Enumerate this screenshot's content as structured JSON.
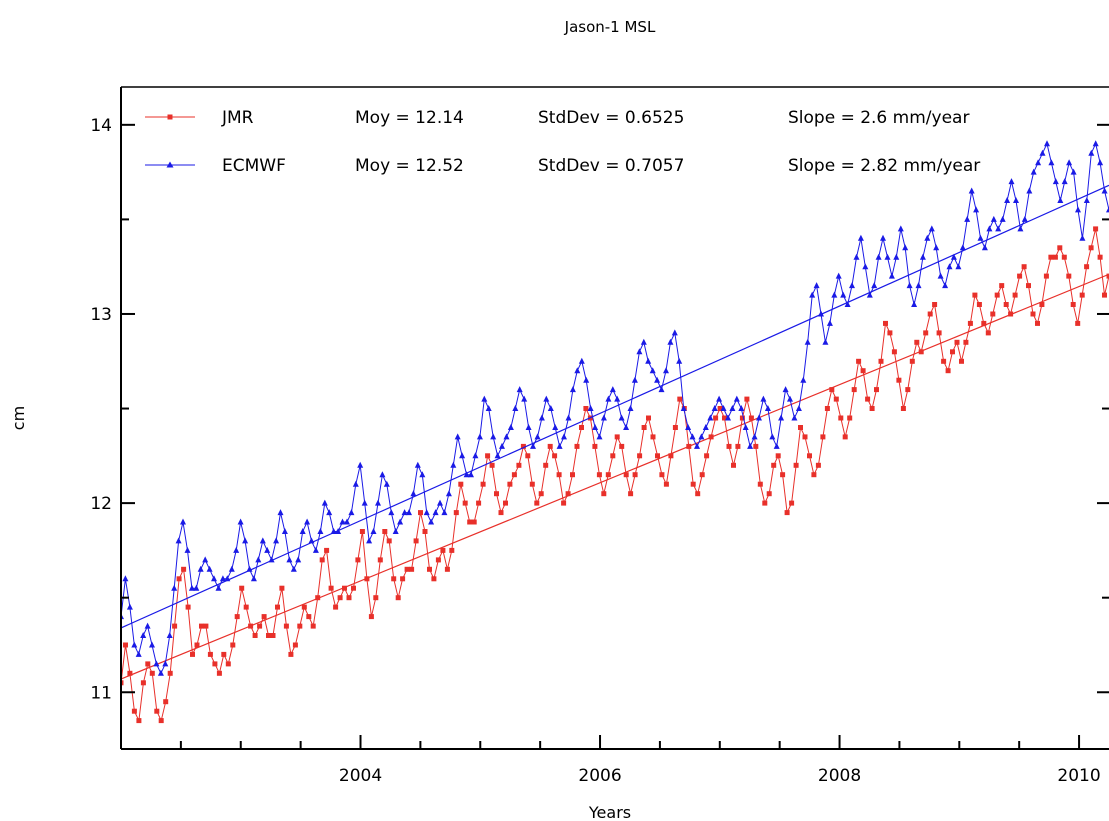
{
  "chart_data": {
    "type": "line",
    "title": "Jason-1 MSL",
    "xlabel": "Years",
    "ylabel": "cm",
    "xlim": [
      2002.0,
      2010.25
    ],
    "ylim": [
      10.7,
      14.2
    ],
    "x_ticks": [
      2004,
      2006,
      2008,
      2010
    ],
    "x_tick_labels": [
      "2004",
      "2006",
      "2008",
      "2010"
    ],
    "x_minor_ticks": [
      2002.5,
      2003,
      2003.5,
      2004.5,
      2005,
      2005.5,
      2006.5,
      2007,
      2007.5,
      2008.5,
      2009,
      2009.5
    ],
    "y_ticks": [
      11,
      12,
      13,
      14
    ],
    "y_tick_labels": [
      "11",
      "12",
      "13",
      "14"
    ],
    "y_minor_ticks": [
      11.5,
      12.5,
      13.5
    ],
    "grid": false,
    "legend_position": "top-left",
    "series": [
      {
        "name": "JMR",
        "color": "#e8302a",
        "marker": "square",
        "moy": "Moy = 12.14",
        "stddev": "StdDev = 0.6525",
        "slope": "Slope = 2.6 mm/year",
        "trend": [
          [
            2002.0,
            11.07
          ],
          [
            2010.25,
            13.21
          ]
        ],
        "values": [
          11.05,
          11.25,
          11.1,
          10.9,
          10.85,
          11.05,
          11.15,
          11.1,
          10.9,
          10.85,
          10.95,
          11.1,
          11.35,
          11.6,
          11.65,
          11.45,
          11.2,
          11.25,
          11.35,
          11.35,
          11.2,
          11.15,
          11.1,
          11.2,
          11.15,
          11.25,
          11.4,
          11.55,
          11.45,
          11.35,
          11.3,
          11.35,
          11.4,
          11.3,
          11.3,
          11.45,
          11.55,
          11.35,
          11.2,
          11.25,
          11.35,
          11.45,
          11.4,
          11.35,
          11.5,
          11.7,
          11.75,
          11.55,
          11.45,
          11.5,
          11.55,
          11.5,
          11.55,
          11.7,
          11.85,
          11.6,
          11.4,
          11.5,
          11.7,
          11.85,
          11.8,
          11.6,
          11.5,
          11.6,
          11.65,
          11.65,
          11.8,
          11.95,
          11.85,
          11.65,
          11.6,
          11.7,
          11.75,
          11.65,
          11.75,
          11.95,
          12.1,
          12.0,
          11.9,
          11.9,
          12.0,
          12.1,
          12.25,
          12.2,
          12.05,
          11.95,
          12.0,
          12.1,
          12.15,
          12.2,
          12.3,
          12.25,
          12.1,
          12.0,
          12.05,
          12.2,
          12.3,
          12.25,
          12.15,
          12.0,
          12.05,
          12.15,
          12.3,
          12.4,
          12.5,
          12.45,
          12.3,
          12.15,
          12.05,
          12.15,
          12.25,
          12.35,
          12.3,
          12.15,
          12.05,
          12.15,
          12.25,
          12.4,
          12.45,
          12.35,
          12.25,
          12.15,
          12.1,
          12.25,
          12.4,
          12.55,
          12.5,
          12.3,
          12.1,
          12.05,
          12.15,
          12.25,
          12.35,
          12.45,
          12.5,
          12.45,
          12.3,
          12.2,
          12.3,
          12.45,
          12.55,
          12.45,
          12.3,
          12.1,
          12.0,
          12.05,
          12.2,
          12.25,
          12.15,
          11.95,
          12.0,
          12.2,
          12.4,
          12.35,
          12.25,
          12.15,
          12.2,
          12.35,
          12.5,
          12.6,
          12.55,
          12.45,
          12.35,
          12.45,
          12.6,
          12.75,
          12.7,
          12.55,
          12.5,
          12.6,
          12.75,
          12.95,
          12.9,
          12.8,
          12.65,
          12.5,
          12.6,
          12.75,
          12.85,
          12.8,
          12.9,
          13.0,
          13.05,
          12.9,
          12.75,
          12.7,
          12.8,
          12.85,
          12.75,
          12.85,
          12.95,
          13.1,
          13.05,
          12.95,
          12.9,
          13.0,
          13.1,
          13.15,
          13.05,
          13.0,
          13.1,
          13.2,
          13.25,
          13.15,
          13.0,
          12.95,
          13.05,
          13.2,
          13.3,
          13.3,
          13.35,
          13.3,
          13.2,
          13.05,
          12.95,
          13.1,
          13.25,
          13.35,
          13.45,
          13.3,
          13.1,
          13.2
        ]
      },
      {
        "name": "ECMWF",
        "color": "#1a1ae6",
        "marker": "triangle",
        "moy": "Moy = 12.52",
        "stddev": "StdDev = 0.7057",
        "slope": "Slope = 2.82 mm/year",
        "trend": [
          [
            2002.0,
            11.34
          ],
          [
            2010.25,
            13.68
          ]
        ],
        "values": [
          11.4,
          11.6,
          11.45,
          11.25,
          11.2,
          11.3,
          11.35,
          11.25,
          11.15,
          11.1,
          11.15,
          11.3,
          11.55,
          11.8,
          11.9,
          11.75,
          11.55,
          11.55,
          11.65,
          11.7,
          11.65,
          11.6,
          11.55,
          11.6,
          11.6,
          11.65,
          11.75,
          11.9,
          11.8,
          11.65,
          11.6,
          11.7,
          11.8,
          11.75,
          11.7,
          11.8,
          11.95,
          11.85,
          11.7,
          11.65,
          11.7,
          11.85,
          11.9,
          11.8,
          11.75,
          11.85,
          12.0,
          11.95,
          11.85,
          11.85,
          11.9,
          11.9,
          11.95,
          12.1,
          12.2,
          12.0,
          11.8,
          11.85,
          12.0,
          12.15,
          12.1,
          11.95,
          11.85,
          11.9,
          11.95,
          11.95,
          12.05,
          12.2,
          12.15,
          11.95,
          11.9,
          11.95,
          12.0,
          11.95,
          12.05,
          12.2,
          12.35,
          12.25,
          12.15,
          12.15,
          12.25,
          12.35,
          12.55,
          12.5,
          12.35,
          12.25,
          12.3,
          12.35,
          12.4,
          12.5,
          12.6,
          12.55,
          12.4,
          12.3,
          12.35,
          12.45,
          12.55,
          12.5,
          12.4,
          12.3,
          12.35,
          12.45,
          12.6,
          12.7,
          12.75,
          12.65,
          12.5,
          12.4,
          12.35,
          12.45,
          12.55,
          12.6,
          12.55,
          12.45,
          12.4,
          12.5,
          12.65,
          12.8,
          12.85,
          12.75,
          12.7,
          12.65,
          12.6,
          12.7,
          12.85,
          12.9,
          12.75,
          12.5,
          12.4,
          12.35,
          12.3,
          12.35,
          12.4,
          12.45,
          12.5,
          12.55,
          12.5,
          12.45,
          12.5,
          12.55,
          12.5,
          12.4,
          12.3,
          12.35,
          12.45,
          12.55,
          12.5,
          12.35,
          12.3,
          12.45,
          12.6,
          12.55,
          12.45,
          12.5,
          12.65,
          12.85,
          13.1,
          13.15,
          13.0,
          12.85,
          12.95,
          13.1,
          13.2,
          13.1,
          13.05,
          13.15,
          13.3,
          13.4,
          13.25,
          13.1,
          13.15,
          13.3,
          13.4,
          13.3,
          13.2,
          13.3,
          13.45,
          13.35,
          13.15,
          13.05,
          13.15,
          13.3,
          13.4,
          13.45,
          13.35,
          13.2,
          13.15,
          13.25,
          13.3,
          13.25,
          13.35,
          13.5,
          13.65,
          13.55,
          13.4,
          13.35,
          13.45,
          13.5,
          13.45,
          13.5,
          13.6,
          13.7,
          13.6,
          13.45,
          13.5,
          13.65,
          13.75,
          13.8,
          13.85,
          13.9,
          13.8,
          13.7,
          13.6,
          13.7,
          13.8,
          13.75,
          13.55,
          13.4,
          13.6,
          13.85,
          13.9,
          13.8,
          13.65,
          13.55
        ]
      }
    ]
  }
}
